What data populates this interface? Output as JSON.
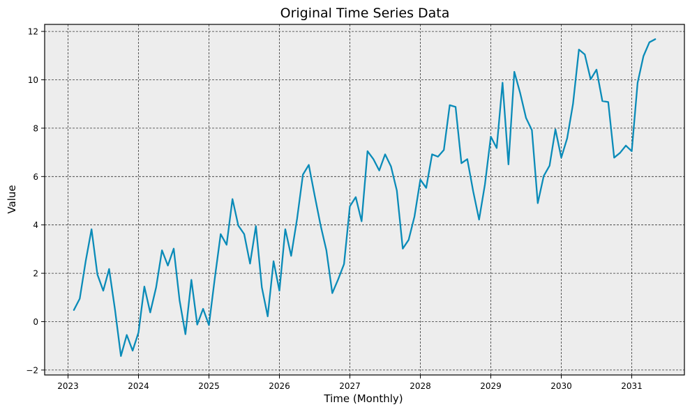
{
  "figure": {
    "title": "Original Time Series Data",
    "xlabel": "Time (Monthly)",
    "ylabel": "Value",
    "background": "#ffffff",
    "axes_background": "#ededed",
    "line_color": "#0a8bb8",
    "grid_color": "#333333"
  },
  "chart_data": {
    "type": "line",
    "title": "Original Time Series Data",
    "xlabel": "Time (Monthly)",
    "ylabel": "Value",
    "x_start": "2023-02",
    "x_freq": "monthly",
    "xlim": [
      2022.6,
      2031.75
    ],
    "ylim": [
      -2.1,
      12.3
    ],
    "xticks": [
      2023,
      2024,
      2025,
      2026,
      2027,
      2028,
      2029,
      2030,
      2031
    ],
    "xtick_labels": [
      "2023",
      "2024",
      "2025",
      "2026",
      "2027",
      "2028",
      "2029",
      "2030",
      "2031"
    ],
    "yticks": [
      -2,
      0,
      2,
      4,
      6,
      8,
      10,
      12
    ],
    "ytick_labels": [
      "−2",
      "0",
      "2",
      "4",
      "6",
      "8",
      "10",
      "12"
    ],
    "grid": true,
    "grid_style": "dashed",
    "legend": false,
    "series": [
      {
        "name": "Value",
        "color": "#0a8bb8",
        "values": [
          0.48,
          0.95,
          2.5,
          3.82,
          1.95,
          1.28,
          2.18,
          0.5,
          -1.42,
          -0.55,
          -1.2,
          -0.45,
          1.45,
          0.38,
          1.42,
          2.95,
          2.32,
          3.02,
          0.88,
          -0.52,
          1.73,
          -0.12,
          0.53,
          -0.14,
          1.8,
          3.62,
          3.18,
          5.07,
          3.97,
          3.62,
          2.4,
          3.95,
          1.42,
          0.22,
          2.5,
          1.28,
          3.82,
          2.72,
          4.25,
          6.08,
          6.48,
          5.22,
          4.0,
          2.95,
          1.18,
          1.75,
          2.38,
          4.77,
          5.15,
          4.15,
          7.05,
          6.72,
          6.25,
          6.92,
          6.42,
          5.42,
          3.02,
          3.38,
          4.35,
          5.87,
          5.53,
          6.92,
          6.82,
          7.1,
          8.95,
          8.88,
          6.55,
          6.72,
          5.38,
          4.22,
          5.68,
          7.65,
          7.18,
          9.88,
          6.5,
          10.33,
          9.45,
          8.42,
          7.92,
          4.9,
          6.02,
          6.45,
          7.95,
          6.78,
          7.58,
          9.0,
          11.25,
          11.05,
          10.02,
          10.42,
          9.12,
          9.08,
          6.78,
          6.98,
          7.28,
          7.05,
          9.88,
          10.98,
          11.55,
          11.68
        ]
      }
    ]
  }
}
